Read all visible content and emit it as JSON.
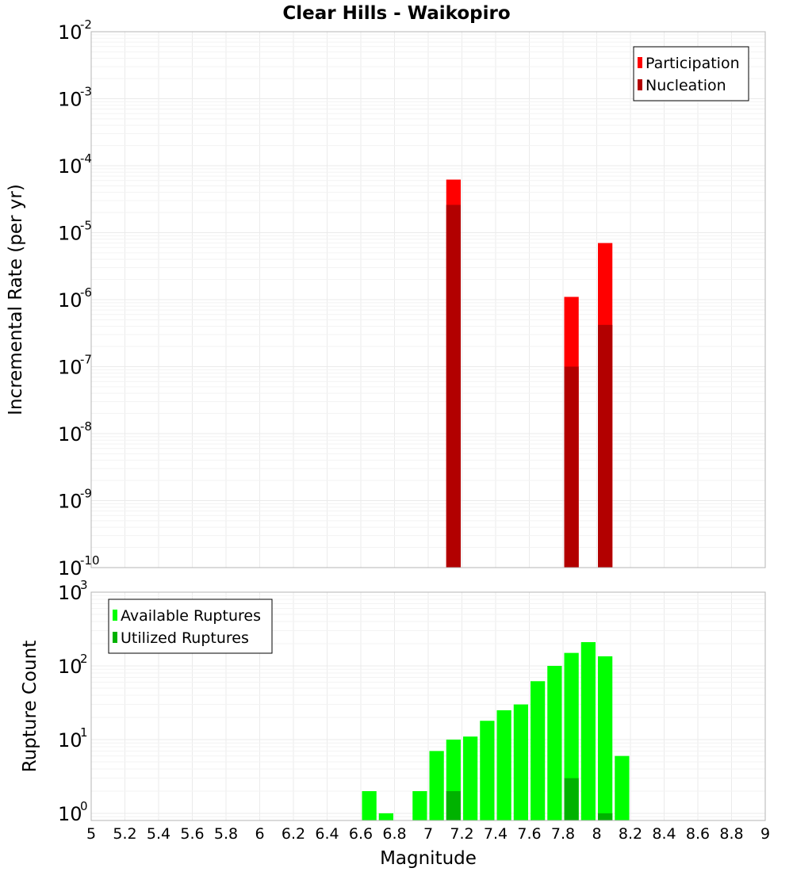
{
  "chart_data": [
    {
      "type": "bar",
      "title": "Clear Hills - Waikopiro",
      "ylabel": "Incremental Rate (per yr)",
      "yscale": "log",
      "ylim": [
        1e-10,
        0.01
      ],
      "xlim": [
        5,
        9
      ],
      "bar_width": 0.1,
      "legend_position": "top-right",
      "series": [
        {
          "name": "Participation",
          "color": "#ff0000",
          "points": [
            {
              "x": 7.15,
              "y": 6.2e-05
            },
            {
              "x": 7.85,
              "y": 1.1e-06
            },
            {
              "x": 8.05,
              "y": 7e-06
            }
          ]
        },
        {
          "name": "Nucleation",
          "color": "#b20000",
          "points": [
            {
              "x": 7.15,
              "y": 2.6e-05
            },
            {
              "x": 7.85,
              "y": 1e-07
            },
            {
              "x": 8.05,
              "y": 4.2e-07
            }
          ]
        }
      ]
    },
    {
      "type": "bar",
      "xlabel": "Magnitude",
      "ylabel": "Rupture Count",
      "yscale": "log",
      "ylim": [
        0.8,
        1000
      ],
      "xlim": [
        5,
        9
      ],
      "bar_width": 0.1,
      "legend_position": "top-left",
      "xticks": [
        "5",
        "5.2",
        "5.4",
        "5.6",
        "5.8",
        "6",
        "6.2",
        "6.4",
        "6.6",
        "6.8",
        "7",
        "7.2",
        "7.4",
        "7.6",
        "7.8",
        "8",
        "8.2",
        "8.4",
        "8.6",
        "8.8",
        "9"
      ],
      "series": [
        {
          "name": "Available Ruptures",
          "color": "#00ff00",
          "points": [
            {
              "x": 6.65,
              "y": 2
            },
            {
              "x": 6.75,
              "y": 1
            },
            {
              "x": 6.95,
              "y": 2
            },
            {
              "x": 7.05,
              "y": 7
            },
            {
              "x": 7.15,
              "y": 10
            },
            {
              "x": 7.25,
              "y": 11
            },
            {
              "x": 7.35,
              "y": 18
            },
            {
              "x": 7.45,
              "y": 25
            },
            {
              "x": 7.55,
              "y": 30
            },
            {
              "x": 7.65,
              "y": 62
            },
            {
              "x": 7.75,
              "y": 100
            },
            {
              "x": 7.85,
              "y": 150
            },
            {
              "x": 7.95,
              "y": 210
            },
            {
              "x": 8.05,
              "y": 135
            },
            {
              "x": 8.15,
              "y": 6
            }
          ]
        },
        {
          "name": "Utilized Ruptures",
          "color": "#00b200",
          "points": [
            {
              "x": 7.15,
              "y": 2
            },
            {
              "x": 7.85,
              "y": 3
            },
            {
              "x": 8.05,
              "y": 1
            }
          ]
        }
      ]
    }
  ]
}
